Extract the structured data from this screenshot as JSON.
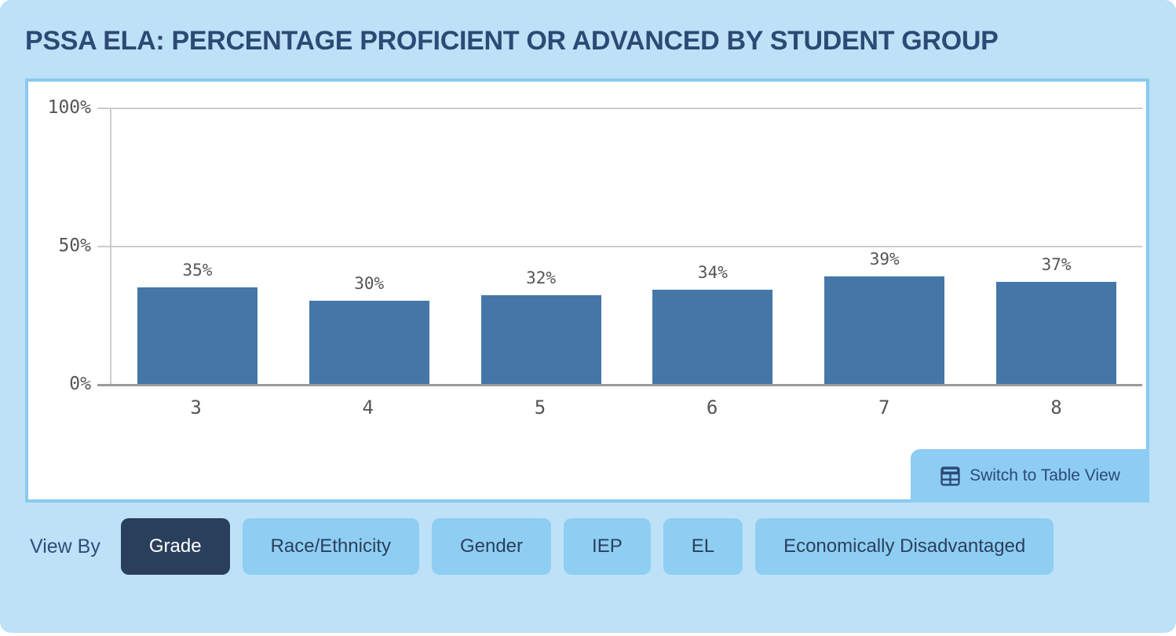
{
  "header": {
    "title": "PSSA ELA: PERCENTAGE PROFICIENT OR ADVANCED BY STUDENT GROUP"
  },
  "chart_data": {
    "type": "bar",
    "title": "PSSA ELA: PERCENTAGE PROFICIENT OR ADVANCED BY STUDENT GROUP",
    "categories": [
      "3",
      "4",
      "5",
      "6",
      "7",
      "8"
    ],
    "values": [
      35,
      30,
      32,
      34,
      39,
      37
    ],
    "value_labels": [
      "35%",
      "30%",
      "32%",
      "34%",
      "39%",
      "37%"
    ],
    "xlabel": "",
    "ylabel": "",
    "ylim": [
      0,
      100
    ],
    "y_ticks": [
      {
        "label": "100%",
        "value": 100
      },
      {
        "label": "50%",
        "value": 50
      },
      {
        "label": "0%",
        "value": 0
      }
    ],
    "grid": true,
    "legend": "none",
    "bar_color": "#4477a8"
  },
  "chart_panel": {
    "table_view_button": {
      "label": "Switch to Table View",
      "icon": "table-icon"
    }
  },
  "view_by": {
    "label": "View By",
    "options": [
      {
        "label": "Grade",
        "selected": true
      },
      {
        "label": "Race/Ethnicity",
        "selected": false
      },
      {
        "label": "Gender",
        "selected": false
      },
      {
        "label": "IEP",
        "selected": false
      },
      {
        "label": "EL",
        "selected": false
      },
      {
        "label": "Economically Disadvantaged",
        "selected": false
      }
    ]
  },
  "colors": {
    "card_background": "#bde1f7",
    "panel_border": "#89c9ef",
    "bar": "#4477a8",
    "button_background": "#8ecef3",
    "selected_button_background": "#2a3f5c",
    "selected_button_text": "#ffffff",
    "navy_text": "#2b4a75",
    "tick_text": "#555555",
    "gridline": "#cccccc",
    "axis_line": "#9a9a9a"
  }
}
